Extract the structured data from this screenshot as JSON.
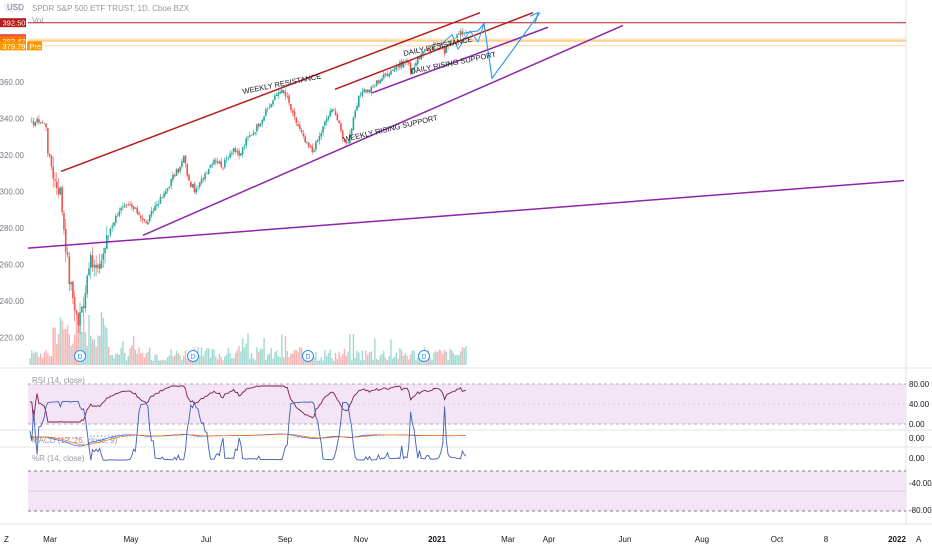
{
  "header": {
    "title": "SPDR S&P 500 ETF TRUST, 1D, Cboe BZX",
    "volume_label": "Vol",
    "currency_badge": "USD"
  },
  "colors": {
    "up": "#26a69a",
    "down": "#ef5350",
    "resistance": "#b71c1c",
    "support": "#8e24aa",
    "projection": "#2196f3",
    "rsi_line": "#7e1f4a",
    "wr_line": "#3f5fb5",
    "band_fill": "#f3e5f5"
  },
  "chart_data": [
    {
      "type": "candlestick",
      "title": "SPDR S&P 500 ETF TRUST, 1D, Cboe BZX",
      "x_tick_labels": [
        "Mar",
        "May",
        "Jul",
        "Sep",
        "Nov",
        "2021",
        "Mar",
        "Apr",
        "Jun",
        "Aug",
        "Oct",
        "8",
        "2022"
      ],
      "y_tick_labels": [
        "220.00",
        "240.00",
        "260.00",
        "280.00",
        "300.00",
        "320.00",
        "340.00",
        "360.00"
      ],
      "ylim": [
        205,
        395
      ],
      "price_tags": [
        {
          "value": 392.5,
          "label": "392.50",
          "color": "#b71c1c"
        },
        {
          "value": 383.79,
          "label": "383.79",
          "color": "#ef5350"
        },
        {
          "value": 382.47,
          "label": "382.47",
          "color": "#f57c00"
        },
        {
          "value": 379.79,
          "label": "379.79",
          "color": "#ff9800",
          "suffix": "Pre"
        }
      ],
      "dividend_marker_label": "D",
      "annotations": [
        {
          "text": "WEEKLY RESISTANCE"
        },
        {
          "text": "DAILY RESISTANCE"
        },
        {
          "text": "DAILY RISING SUPPORT"
        },
        {
          "text": "WEEKLY RISING SUPPORT"
        }
      ],
      "series_summary": {
        "start": "2020-02-14",
        "start_close": 337,
        "low": 222,
        "low_date": "2020-03-23",
        "end": "2021-02-05",
        "end_close": 387
      }
    },
    {
      "type": "line",
      "title": "RSI (14, close)",
      "y_tick_labels": [
        "80.00",
        "40.00",
        "0.00"
      ],
      "band": [
        30,
        70
      ],
      "ylim": [
        0,
        100
      ]
    },
    {
      "type": "line",
      "title": "MACD (12, 26, close, 9)",
      "y_tick_labels": [
        "0.00"
      ]
    },
    {
      "type": "line",
      "title": "%R (14, close)",
      "y_tick_labels": [
        "0.00",
        "-40.00",
        "-80.00"
      ],
      "band": [
        -80,
        -20
      ],
      "ylim": [
        -100,
        0
      ]
    }
  ],
  "bottom_bar": {
    "left_icon": "Z",
    "right_icon": "A"
  }
}
